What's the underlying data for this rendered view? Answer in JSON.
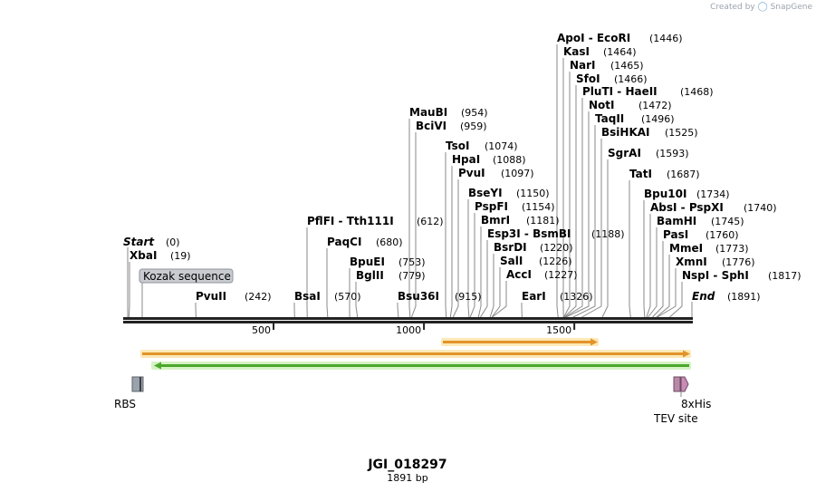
{
  "credit": {
    "prefix": "Created by",
    "brand": "SnapGene"
  },
  "map": {
    "name": "JGI_018297",
    "length_label": "1891 bp",
    "length": 1891,
    "start_label": "Start",
    "start_pos": "(0)",
    "end_label": "End",
    "end_pos": "(1891)",
    "ticks": [
      {
        "value": 500,
        "label": "500"
      },
      {
        "value": 1000,
        "label": "1000"
      },
      {
        "value": 1500,
        "label": "1500"
      }
    ]
  },
  "sites": [
    {
      "name": "XbaI",
      "pos": "(19)",
      "bp": 19
    },
    {
      "name": "PvuII",
      "pos": "(242)",
      "bp": 242
    },
    {
      "name": "BsaI",
      "pos": "(570)",
      "bp": 570
    },
    {
      "name": "PflFI  -  Tth111I",
      "pos": "(612)",
      "bp": 612
    },
    {
      "name": "PaqCI",
      "pos": "(680)",
      "bp": 680
    },
    {
      "name": "BpuEI",
      "pos": "(753)",
      "bp": 753
    },
    {
      "name": "BglII",
      "pos": "(779)",
      "bp": 779
    },
    {
      "name": "Bsu36I",
      "pos": "(915)",
      "bp": 915
    },
    {
      "name": "MauBI",
      "pos": "(954)",
      "bp": 954
    },
    {
      "name": "BciVI",
      "pos": "(959)",
      "bp": 959
    },
    {
      "name": "TsoI",
      "pos": "(1074)",
      "bp": 1074
    },
    {
      "name": "HpaI",
      "pos": "(1088)",
      "bp": 1088
    },
    {
      "name": "PvuI",
      "pos": "(1097)",
      "bp": 1097
    },
    {
      "name": "BseYI",
      "pos": "(1150)",
      "bp": 1150
    },
    {
      "name": "PspFI",
      "pos": "(1154)",
      "bp": 1154
    },
    {
      "name": "BmrI",
      "pos": "(1181)",
      "bp": 1181
    },
    {
      "name": "Esp3I  -  BsmBI",
      "pos": "(1188)",
      "bp": 1188
    },
    {
      "name": "BsrDI",
      "pos": "(1220)",
      "bp": 1220
    },
    {
      "name": "SalI",
      "pos": "(1226)",
      "bp": 1226
    },
    {
      "name": "AccI",
      "pos": "(1227)",
      "bp": 1227
    },
    {
      "name": "EarI",
      "pos": "(1326)",
      "bp": 1326
    },
    {
      "name": "ApoI  -  EcoRI",
      "pos": "(1446)",
      "bp": 1446
    },
    {
      "name": "KasI",
      "pos": "(1464)",
      "bp": 1464
    },
    {
      "name": "NarI",
      "pos": "(1465)",
      "bp": 1465
    },
    {
      "name": "SfoI",
      "pos": "(1466)",
      "bp": 1466
    },
    {
      "name": "PluTI  -  HaeII",
      "pos": "(1468)",
      "bp": 1468
    },
    {
      "name": "NotI",
      "pos": "(1472)",
      "bp": 1472
    },
    {
      "name": "TaqII",
      "pos": "(1496)",
      "bp": 1496
    },
    {
      "name": "BsiHKAI",
      "pos": "(1525)",
      "bp": 1525
    },
    {
      "name": "SgrAI",
      "pos": "(1593)",
      "bp": 1593
    },
    {
      "name": "TatI",
      "pos": "(1687)",
      "bp": 1687
    },
    {
      "name": "Bpu10I",
      "pos": "(1734)",
      "bp": 1734
    },
    {
      "name": "AbsI  -  PspXI",
      "pos": "(1740)",
      "bp": 1740
    },
    {
      "name": "BamHI",
      "pos": "(1745)",
      "bp": 1745
    },
    {
      "name": "PasI",
      "pos": "(1760)",
      "bp": 1760
    },
    {
      "name": "MmeI",
      "pos": "(1773)",
      "bp": 1773
    },
    {
      "name": "XmnI",
      "pos": "(1776)",
      "bp": 1776
    },
    {
      "name": "NspI  -  SphI",
      "pos": "(1817)",
      "bp": 1817
    }
  ],
  "features": {
    "kozak_label": "Kozak sequence",
    "rbs_label": "RBS",
    "his_label": "8xHis",
    "tev_label": "TEV site",
    "colors": {
      "orange_fill": "#f0a23a",
      "orange_glow": "#fde9b8",
      "green_fill": "#5cbf3a",
      "green_glow": "#d6f2c4",
      "rbs": "#9aa2ab",
      "his": "#c98bb7",
      "backbone": "#222222",
      "leader": "#8a8a8a"
    }
  }
}
